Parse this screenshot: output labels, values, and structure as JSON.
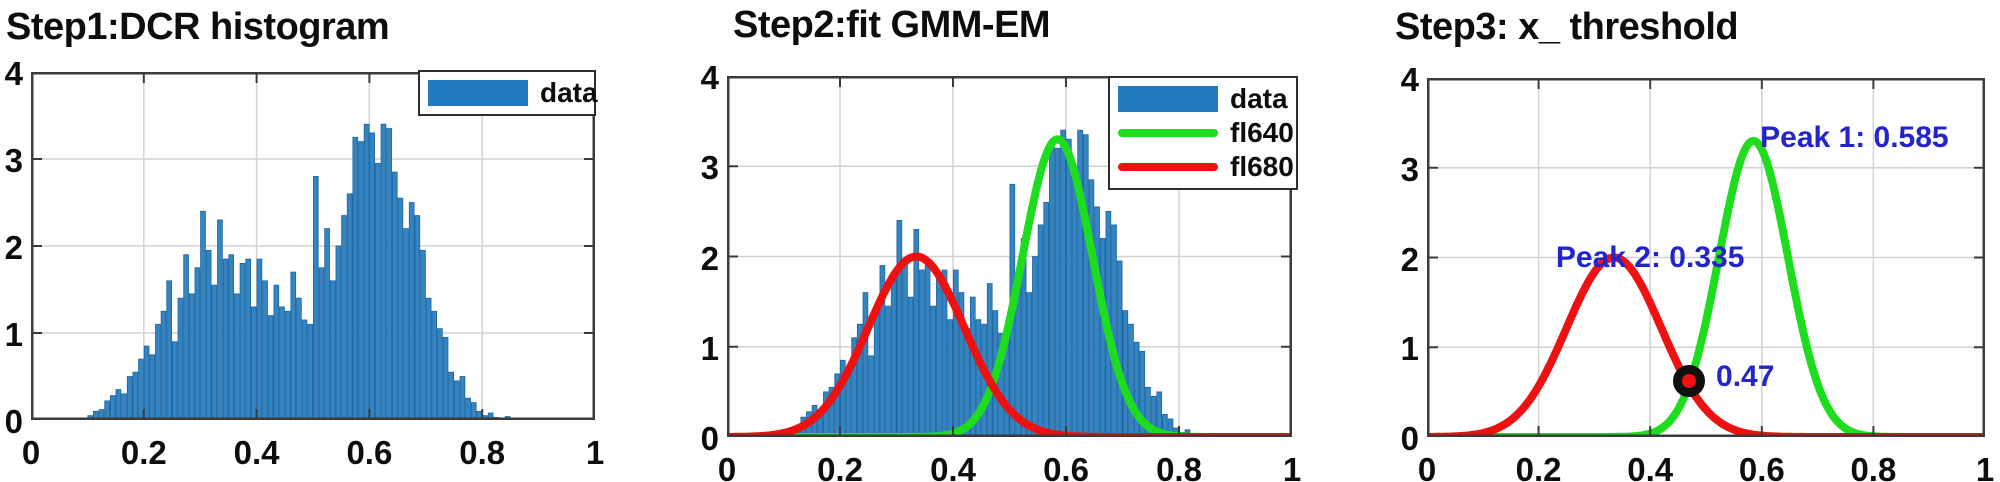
{
  "figure": {
    "background": "#ffffff"
  },
  "colors": {
    "hist_fill": "#3484c2",
    "hist_edge": "#1f649c",
    "legend_patch_blue": "#2379bd",
    "green": "#1edc1e",
    "red": "#ee1111",
    "annotation_blue": "#2424cc",
    "grid": "#d2d2d2",
    "axis": "#3b3b3b",
    "text": "#0d0d0d"
  },
  "chart_data": {
    "shared": {
      "xlim": [
        0,
        1
      ],
      "ylim": [
        0,
        4
      ],
      "x_tick_values": [
        0,
        0.2,
        0.4,
        0.6,
        0.8,
        1
      ],
      "x_tick_labels": [
        "0",
        "0.2",
        "0.4",
        "0.6",
        "0.8",
        "1"
      ],
      "y_tick_values": [
        0,
        1,
        2,
        3,
        4
      ],
      "y_tick_labels": [
        "0",
        "1",
        "2",
        "3",
        "4"
      ],
      "grid": true,
      "histogram": {
        "name": "data",
        "color": "#3484c2",
        "edge_color": "#1f649c",
        "bin_start": 0.1,
        "bin_width": 0.01,
        "heights": [
          0.05,
          0.1,
          0.12,
          0.22,
          0.28,
          0.35,
          0.3,
          0.5,
          0.55,
          0.7,
          0.85,
          0.75,
          1.1,
          1.25,
          1.6,
          0.9,
          1.4,
          1.9,
          1.45,
          1.75,
          2.4,
          1.95,
          1.55,
          2.3,
          1.85,
          1.9,
          1.45,
          1.8,
          1.85,
          1.3,
          1.85,
          1.6,
          1.2,
          1.55,
          1.3,
          1.25,
          1.7,
          1.4,
          1.15,
          1.1,
          2.8,
          1.75,
          2.2,
          1.6,
          2.0,
          2.35,
          2.6,
          3.25,
          3.2,
          3.4,
          3.3,
          2.95,
          3.4,
          3.35,
          2.85,
          2.55,
          2.2,
          2.5,
          2.35,
          1.95,
          1.4,
          1.25,
          1.05,
          0.95,
          0.55,
          0.45,
          0.5,
          0.25,
          0.2,
          0.1,
          0.05,
          0.08,
          0.03,
          0.02,
          0.04,
          0.02
        ]
      },
      "gaussians": [
        {
          "name": "fl640",
          "color": "#1edc1e",
          "amplitude": 3.3,
          "mean": 0.585,
          "sigma": 0.062
        },
        {
          "name": "fl680",
          "color": "#ee1111",
          "amplitude": 2.0,
          "mean": 0.335,
          "sigma": 0.085
        }
      ]
    },
    "charts": [
      {
        "type": "bar",
        "title": "Step1:DCR histogram",
        "series": [
          "data"
        ],
        "legend_entries": [
          {
            "label": "data",
            "swatch": "patch",
            "color": "#2379bd"
          }
        ]
      },
      {
        "type": "bar+line",
        "title": "Step2:fit GMM-EM",
        "series": [
          "data",
          "fl640",
          "fl680"
        ],
        "legend_entries": [
          {
            "label": "data",
            "swatch": "patch",
            "color": "#2379bd"
          },
          {
            "label": "fl640",
            "swatch": "line",
            "color": "#1edc1e"
          },
          {
            "label": "fl680",
            "swatch": "line",
            "color": "#ee1111"
          }
        ]
      },
      {
        "type": "line",
        "title": "Step3: x_ threshold",
        "series": [
          "fl640",
          "fl680"
        ],
        "annotations": [
          {
            "label": "Peak 1: 0.585",
            "x": 0.597,
            "y": 3.5,
            "color": "#2424cc"
          },
          {
            "label": "Peak 2: 0.335",
            "x": 0.231,
            "y": 2.16,
            "color": "#2424cc"
          },
          {
            "label": "0.47",
            "x": 0.518,
            "y": 0.84,
            "color": "#2424cc"
          }
        ],
        "marker": {
          "x": 0.47,
          "y": 0.62,
          "style": "black-ring-red-center"
        }
      }
    ]
  }
}
